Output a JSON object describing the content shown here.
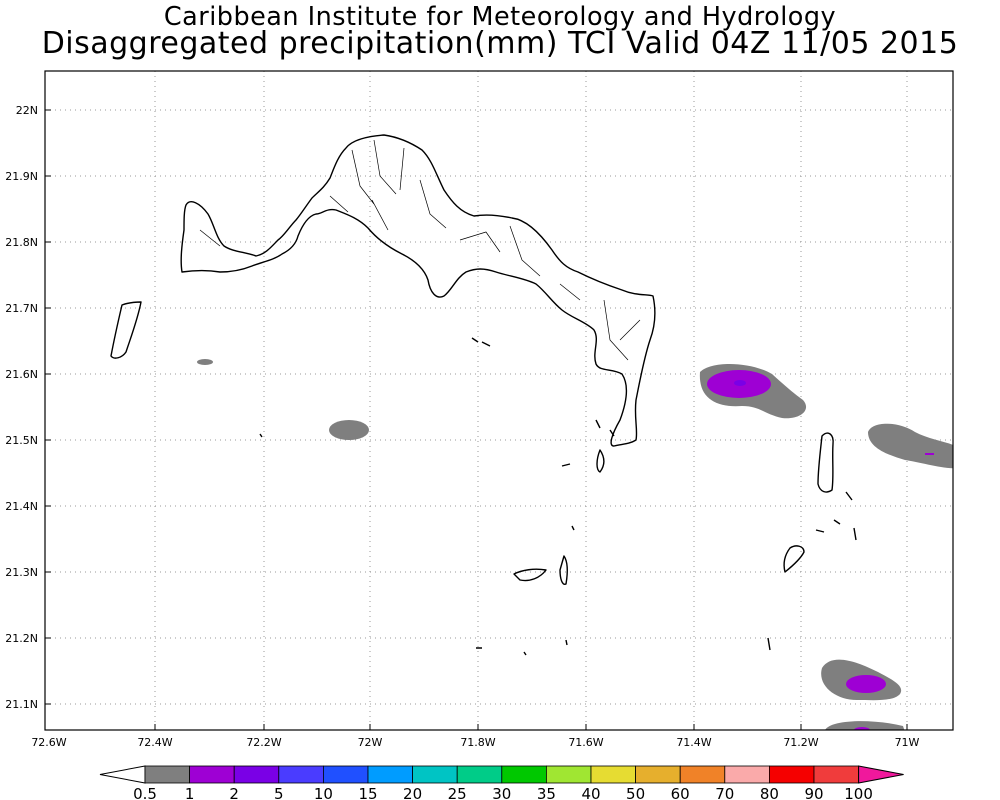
{
  "header": {
    "institution": "Caribbean Institute for Meteorology and Hydrology",
    "product": "Disaggregated precipitation(mm) TCI Valid 04Z 11/05 2015"
  },
  "axes": {
    "lat_labels": [
      "22N",
      "21.9N",
      "21.8N",
      "21.7N",
      "21.6N",
      "21.5N",
      "21.4N",
      "21.3N",
      "21.2N",
      "21.1N"
    ],
    "lon_labels": [
      "72.6W",
      "72.4W",
      "72.2W",
      "72W",
      "71.8W",
      "71.6W",
      "71.4W",
      "71.2W",
      "71W"
    ]
  },
  "colorbar": {
    "labels": [
      "0.5",
      "1",
      "2",
      "5",
      "10",
      "15",
      "20",
      "25",
      "30",
      "35",
      "40",
      "50",
      "60",
      "70",
      "80",
      "90",
      "100"
    ],
    "colors": [
      "#ffffff",
      "#7f7f7f",
      "#9e00d4",
      "#7a00e6",
      "#4a3cff",
      "#2050ff",
      "#009cff",
      "#00c4c4",
      "#00cc88",
      "#00c800",
      "#a0e632",
      "#e6dc32",
      "#e6af2d",
      "#f08228",
      "#faaaaa",
      "#f50000",
      "#f03c3c",
      "#f0189c"
    ]
  },
  "precip_cells": [
    {
      "id": "cell-east-center",
      "max_class": "2"
    },
    {
      "id": "cell-east-right",
      "max_class": "2"
    },
    {
      "id": "cell-mid",
      "max_class": "1"
    },
    {
      "id": "cell-southeast",
      "max_class": "2"
    },
    {
      "id": "cell-south-edge",
      "max_class": "1"
    },
    {
      "id": "cell-small-west",
      "max_class": "1"
    }
  ]
}
